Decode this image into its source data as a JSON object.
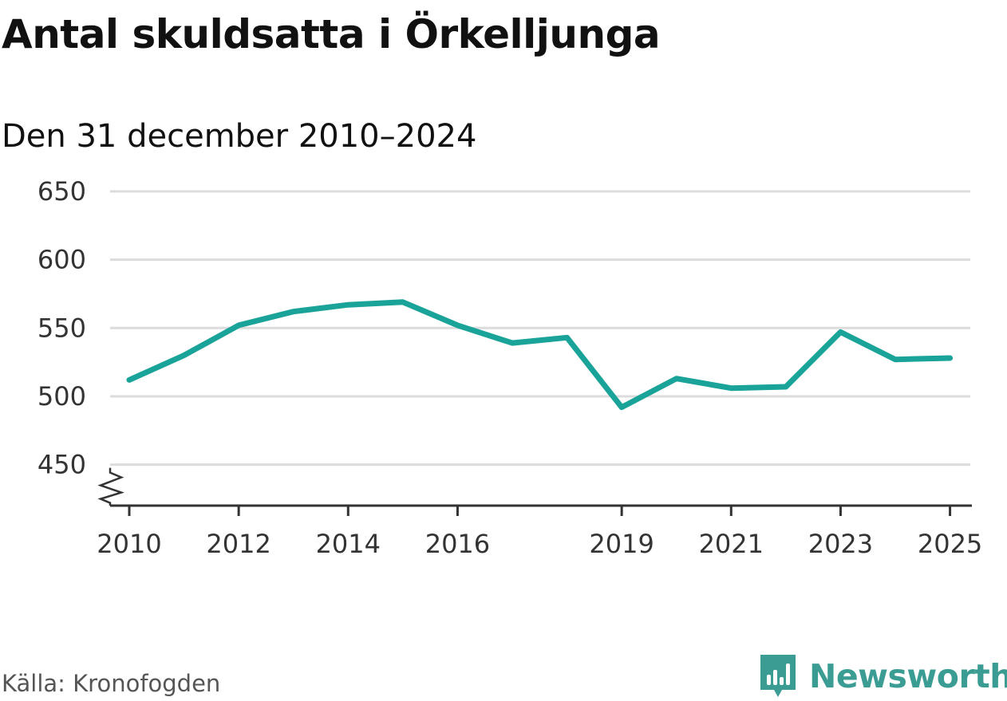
{
  "title": "Antal skuldsatta i Örkelljunga",
  "subtitle": "Den 31 december 2010–2024",
  "source": "Källa: Kronofogden",
  "brand": {
    "name": "Newsworthy",
    "icon": "newsworthy-logo-icon"
  },
  "colors": {
    "line": "#1aa399",
    "grid": "#dcdcdc",
    "axis": "#333333",
    "brand": "#3b9c93"
  },
  "chart_data": {
    "type": "line",
    "title": "Antal skuldsatta i Örkelljunga",
    "subtitle": "Den 31 december 2010–2024",
    "xlabel": "",
    "ylabel": "",
    "xlim": [
      2009.65,
      2025.4
    ],
    "ylim": [
      420,
      650
    ],
    "yticks": [
      450,
      500,
      550,
      600,
      650
    ],
    "xticks": [
      2010,
      2012,
      2014,
      2016,
      2019,
      2021,
      2023,
      2025
    ],
    "y_axis_break": true,
    "grid": true,
    "series": [
      {
        "name": "Antal skuldsatta",
        "x": [
          2010,
          2011,
          2012,
          2013,
          2014,
          2015,
          2016,
          2017,
          2018,
          2019,
          2020,
          2021,
          2022,
          2023,
          2024,
          2025
        ],
        "values": [
          512,
          530,
          552,
          562,
          567,
          569,
          552,
          539,
          543,
          492,
          513,
          506,
          507,
          547,
          527,
          528
        ]
      }
    ]
  }
}
